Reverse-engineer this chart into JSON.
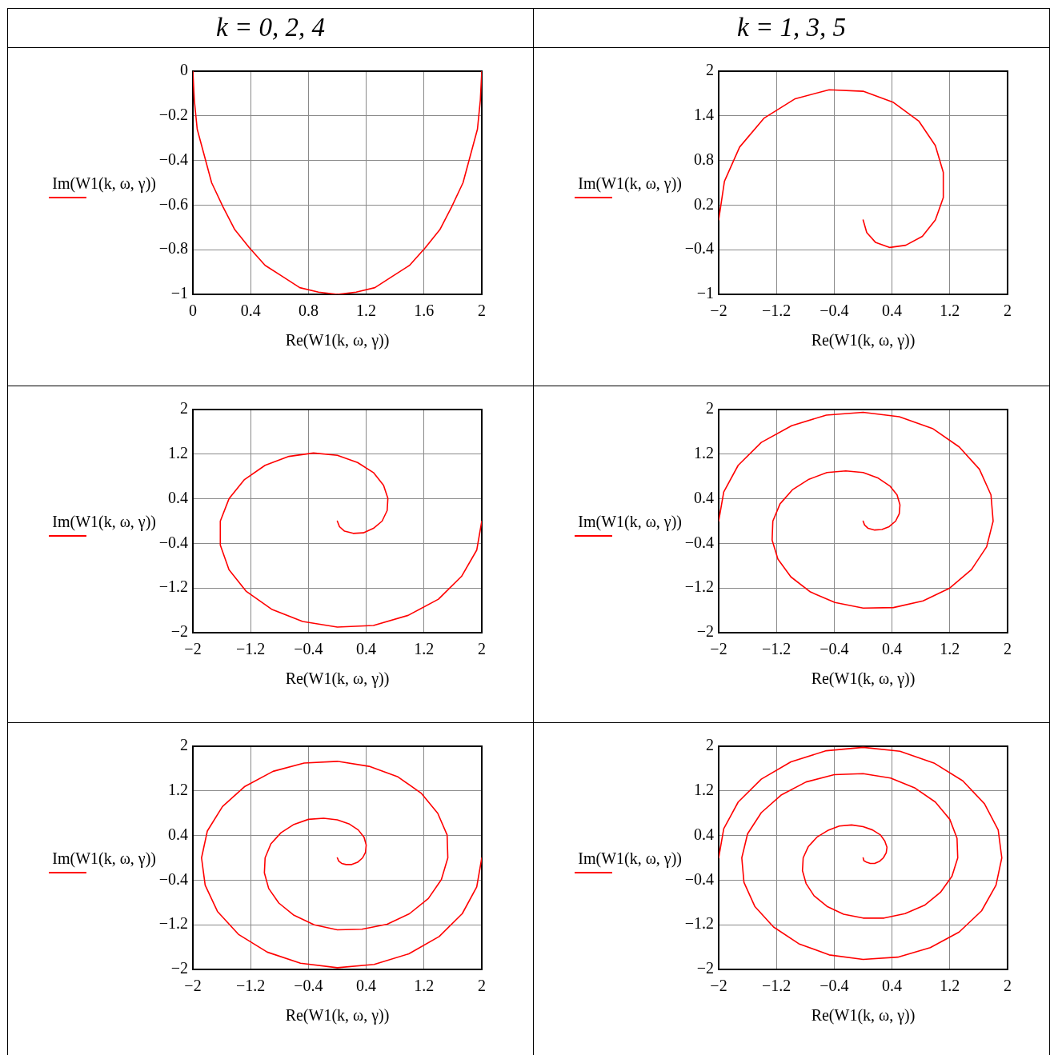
{
  "chart_data": [
    {
      "type": "line",
      "title": "k = 0, 2, 4",
      "xlabel": "Re(W1(k, ω, γ))",
      "ylabel": "Im(W1(k, ω, γ))",
      "color": "#ff0000",
      "grid": true,
      "xlim": [
        0,
        2
      ],
      "xticks": [
        0,
        0.4,
        0.8,
        1.2,
        1.6,
        2
      ],
      "ylim": [
        -1,
        0
      ],
      "yticks": [
        {
          "value": -1,
          "label": "−1"
        },
        {
          "value": -0.8,
          "label": "−0.8"
        },
        {
          "value": -0.6,
          "label": "−0.6"
        },
        {
          "value": -0.4,
          "label": "−0.4"
        },
        {
          "value": -0.2,
          "label": "−0.2"
        },
        0
      ],
      "x": [
        2,
        1.99,
        1.97,
        1.92,
        1.87,
        1.79,
        1.71,
        1.61,
        1.5,
        1.38,
        1.26,
        1.13,
        1,
        0.87,
        0.74,
        0.62,
        0.5,
        0.39,
        0.29,
        0.21,
        0.13,
        0.08,
        0.03,
        0.01,
        0
      ],
      "values": [
        0,
        -0.13,
        -0.26,
        -0.38,
        -0.5,
        -0.61,
        -0.71,
        -0.79,
        -0.87,
        -0.92,
        -0.97,
        -0.99,
        -1,
        -0.99,
        -0.97,
        -0.92,
        -0.87,
        -0.79,
        -0.71,
        -0.61,
        -0.5,
        -0.38,
        -0.26,
        -0.13,
        0
      ]
    },
    {
      "type": "line",
      "title": "k = 1, 3, 5",
      "xlabel": "Re(W1(k, ω, γ))",
      "ylabel": "Im(W1(k, ω, γ))",
      "color": "#ff0000",
      "grid": true,
      "xlim": [
        -2,
        2
      ],
      "xticks": [
        {
          "value": -2,
          "label": "−2"
        },
        {
          "value": -1.2,
          "label": "−1.2"
        },
        {
          "value": -0.4,
          "label": "−0.4"
        },
        0.4,
        1.2,
        2
      ],
      "ylim": [
        -1,
        2
      ],
      "yticks": [
        {
          "value": -1,
          "label": "−1"
        },
        {
          "value": -0.4,
          "label": "−0.4"
        },
        0.2,
        0.8,
        1.4,
        2
      ],
      "x": [
        -2,
        -1.92,
        -1.71,
        -1.37,
        -0.94,
        -0.47,
        0,
        0.42,
        0.77,
        1,
        1.11,
        1.11,
        1,
        0.82,
        0.59,
        0.37,
        0.17,
        0.05,
        0
      ],
      "values": [
        0,
        0.52,
        0.98,
        1.37,
        1.63,
        1.75,
        1.73,
        1.58,
        1.33,
        1,
        0.64,
        0.3,
        0,
        -0.22,
        -0.34,
        -0.37,
        -0.3,
        -0.17,
        0
      ]
    },
    {
      "type": "line",
      "xlabel": "Re(W1(k, ω, γ))",
      "ylabel": "Im(W1(k, ω, γ))",
      "color": "#ff0000",
      "grid": true,
      "xlim": [
        -2,
        2
      ],
      "xticks": [
        {
          "value": -2,
          "label": "−2"
        },
        {
          "value": -1.2,
          "label": "−1.2"
        },
        {
          "value": -0.4,
          "label": "−0.4"
        },
        0.4,
        1.2,
        2
      ],
      "ylim": [
        -2,
        2
      ],
      "yticks": [
        {
          "value": -2,
          "label": "−2"
        },
        {
          "value": -1.2,
          "label": "−1.2"
        },
        {
          "value": -0.4,
          "label": "−0.4"
        },
        0.4,
        1.2,
        2
      ],
      "x": [
        2,
        1.93,
        1.72,
        1.4,
        0.98,
        0.5,
        0,
        -0.48,
        -0.91,
        -1.26,
        -1.5,
        -1.62,
        -1.62,
        -1.5,
        -1.29,
        -1,
        -0.67,
        -0.33,
        0,
        0.28,
        0.5,
        0.64,
        0.7,
        0.69,
        0.62,
        0.5,
        0.36,
        0.22,
        0.1,
        0.03,
        0
      ],
      "values": [
        0,
        -0.52,
        -0.99,
        -1.4,
        -1.69,
        -1.87,
        -1.9,
        -1.8,
        -1.58,
        -1.26,
        -0.87,
        -0.43,
        0,
        0.4,
        0.74,
        1,
        1.16,
        1.22,
        1.18,
        1.05,
        0.87,
        0.64,
        0.41,
        0.19,
        0,
        -0.13,
        -0.21,
        -0.22,
        -0.18,
        -0.1,
        0
      ]
    },
    {
      "type": "line",
      "xlabel": "Re(W1(k, ω, γ))",
      "ylabel": "Im(W1(k, ω, γ))",
      "color": "#ff0000",
      "grid": true,
      "xlim": [
        -2,
        2
      ],
      "xticks": [
        {
          "value": -2,
          "label": "−2"
        },
        {
          "value": -1.2,
          "label": "−1.2"
        },
        {
          "value": -0.4,
          "label": "−0.4"
        },
        0.4,
        1.2,
        2
      ],
      "ylim": [
        -2,
        2
      ],
      "yticks": [
        {
          "value": -2,
          "label": "−2"
        },
        {
          "value": -1.2,
          "label": "−1.2"
        },
        {
          "value": -0.4,
          "label": "−0.4"
        },
        0.4,
        1.2,
        2
      ],
      "x": [
        -2,
        -1.93,
        -1.73,
        -1.41,
        -0.99,
        -0.51,
        0,
        0.5,
        0.96,
        1.33,
        1.61,
        1.77,
        1.8,
        1.71,
        1.5,
        1.2,
        0.83,
        0.42,
        0,
        -0.39,
        -0.73,
        -1,
        -1.18,
        -1.26,
        -1.25,
        -1.15,
        -0.98,
        -0.75,
        -0.5,
        -0.24,
        0,
        0.21,
        0.37,
        0.47,
        0.51,
        0.5,
        0.45,
        0.36,
        0.26,
        0.16,
        0.07,
        0.02,
        0
      ],
      "values": [
        0,
        0.52,
        1,
        1.41,
        1.71,
        1.9,
        1.95,
        1.87,
        1.66,
        1.33,
        0.93,
        0.47,
        0,
        -0.46,
        -0.87,
        -1.2,
        -1.43,
        -1.55,
        -1.56,
        -1.46,
        -1.27,
        -1,
        -0.68,
        -0.34,
        0,
        0.31,
        0.56,
        0.75,
        0.87,
        0.9,
        0.87,
        0.77,
        0.63,
        0.47,
        0.29,
        0.13,
        0,
        -0.1,
        -0.15,
        -0.16,
        -0.13,
        -0.07,
        0
      ]
    },
    {
      "type": "line",
      "xlabel": "Re(W1(k, ω, γ))",
      "ylabel": "Im(W1(k, ω, γ))",
      "color": "#ff0000",
      "grid": true,
      "xlim": [
        -2,
        2
      ],
      "xticks": [
        {
          "value": -2,
          "label": "−2"
        },
        {
          "value": -1.2,
          "label": "−1.2"
        },
        {
          "value": -0.4,
          "label": "−0.4"
        },
        0.4,
        1.2,
        2
      ],
      "ylim": [
        -2,
        2
      ],
      "yticks": [
        {
          "value": -2,
          "label": "−2"
        },
        {
          "value": -1.2,
          "label": "−1.2"
        },
        {
          "value": -0.4,
          "label": "−0.4"
        },
        0.4,
        1.2,
        2
      ],
      "x": [
        2,
        1.93,
        1.73,
        1.41,
        0.99,
        0.51,
        0,
        -0.51,
        -0.97,
        -1.37,
        -1.66,
        -1.83,
        -1.88,
        -1.8,
        -1.59,
        -1.28,
        -0.89,
        -0.46,
        0,
        0.44,
        0.84,
        1.16,
        1.39,
        1.52,
        1.53,
        1.44,
        1.26,
        1,
        0.69,
        0.34,
        0,
        -0.32,
        -0.6,
        -0.81,
        -0.95,
        -1.01,
        -1,
        -0.92,
        -0.78,
        -0.6,
        -0.4,
        -0.19,
        0,
        0.16,
        0.29,
        0.37,
        0.4,
        0.39,
        0.35,
        0.28,
        0.2,
        0.12,
        0.06,
        0.02,
        0
      ],
      "values": [
        0,
        -0.52,
        -1,
        -1.41,
        -1.72,
        -1.91,
        -1.97,
        -1.89,
        -1.69,
        -1.37,
        -0.96,
        -0.49,
        0,
        0.48,
        0.92,
        1.28,
        1.55,
        1.7,
        1.73,
        1.64,
        1.45,
        1.16,
        0.8,
        0.41,
        0,
        -0.39,
        -0.73,
        -1,
        -1.19,
        -1.28,
        -1.29,
        -1.2,
        -1.03,
        -0.81,
        -0.55,
        -0.27,
        0,
        0.25,
        0.45,
        0.6,
        0.69,
        0.71,
        0.68,
        0.61,
        0.5,
        0.37,
        0.23,
        0.1,
        0,
        -0.08,
        -0.12,
        -0.12,
        -0.1,
        -0.06,
        0
      ]
    },
    {
      "type": "line",
      "xlabel": "Re(W1(k, ω, γ))",
      "ylabel": "Im(W1(k, ω, γ))",
      "color": "#ff0000",
      "grid": true,
      "xlim": [
        -2,
        2
      ],
      "xticks": [
        {
          "value": -2,
          "label": "−2"
        },
        {
          "value": -1.2,
          "label": "−1.2"
        },
        {
          "value": -0.4,
          "label": "−0.4"
        },
        0.4,
        1.2,
        2
      ],
      "ylim": [
        -2,
        2
      ],
      "yticks": [
        {
          "value": -2,
          "label": "−2"
        },
        {
          "value": -1.2,
          "label": "−1.2"
        },
        {
          "value": -0.4,
          "label": "−0.4"
        },
        0.4,
        1.2,
        2
      ],
      "x": [
        -2,
        -1.93,
        -1.73,
        -1.41,
        -1,
        -0.51,
        0,
        0.51,
        0.98,
        1.38,
        1.68,
        1.87,
        1.92,
        1.84,
        1.64,
        1.33,
        0.93,
        0.48,
        0,
        -0.47,
        -0.89,
        -1.24,
        -1.5,
        -1.65,
        -1.68,
        -1.6,
        -1.41,
        -1.13,
        -0.79,
        -0.4,
        0,
        0.38,
        0.72,
        1,
        1.2,
        1.3,
        1.31,
        1.23,
        1.07,
        0.85,
        0.58,
        0.29,
        0,
        -0.27,
        -0.5,
        -0.68,
        -0.79,
        -0.84,
        -0.83,
        -0.76,
        -0.64,
        -0.49,
        -0.33,
        -0.16,
        0,
        0.13,
        0.24,
        0.3,
        0.33,
        0.32,
        0.28,
        0.23,
        0.16,
        0.1,
        0.05,
        0.01,
        0
      ],
      "values": [
        0,
        0.52,
        1,
        1.41,
        1.72,
        1.92,
        1.98,
        1.91,
        1.7,
        1.38,
        0.97,
        0.5,
        0,
        -0.49,
        -0.95,
        -1.33,
        -1.61,
        -1.78,
        -1.82,
        -1.74,
        -1.54,
        -1.24,
        -0.87,
        -0.44,
        0,
        0.43,
        0.81,
        1.13,
        1.36,
        1.49,
        1.51,
        1.43,
        1.25,
        1,
        0.69,
        0.35,
        0,
        -0.33,
        -0.62,
        -0.85,
        -1,
        -1.08,
        -1.08,
        -1.01,
        -0.87,
        -0.68,
        -0.46,
        -0.23,
        0,
        0.2,
        0.37,
        0.49,
        0.57,
        0.59,
        0.56,
        0.5,
        0.41,
        0.3,
        0.19,
        0.09,
        0,
        -0.06,
        -0.1,
        -0.1,
        -0.08,
        -0.05,
        0
      ]
    }
  ]
}
